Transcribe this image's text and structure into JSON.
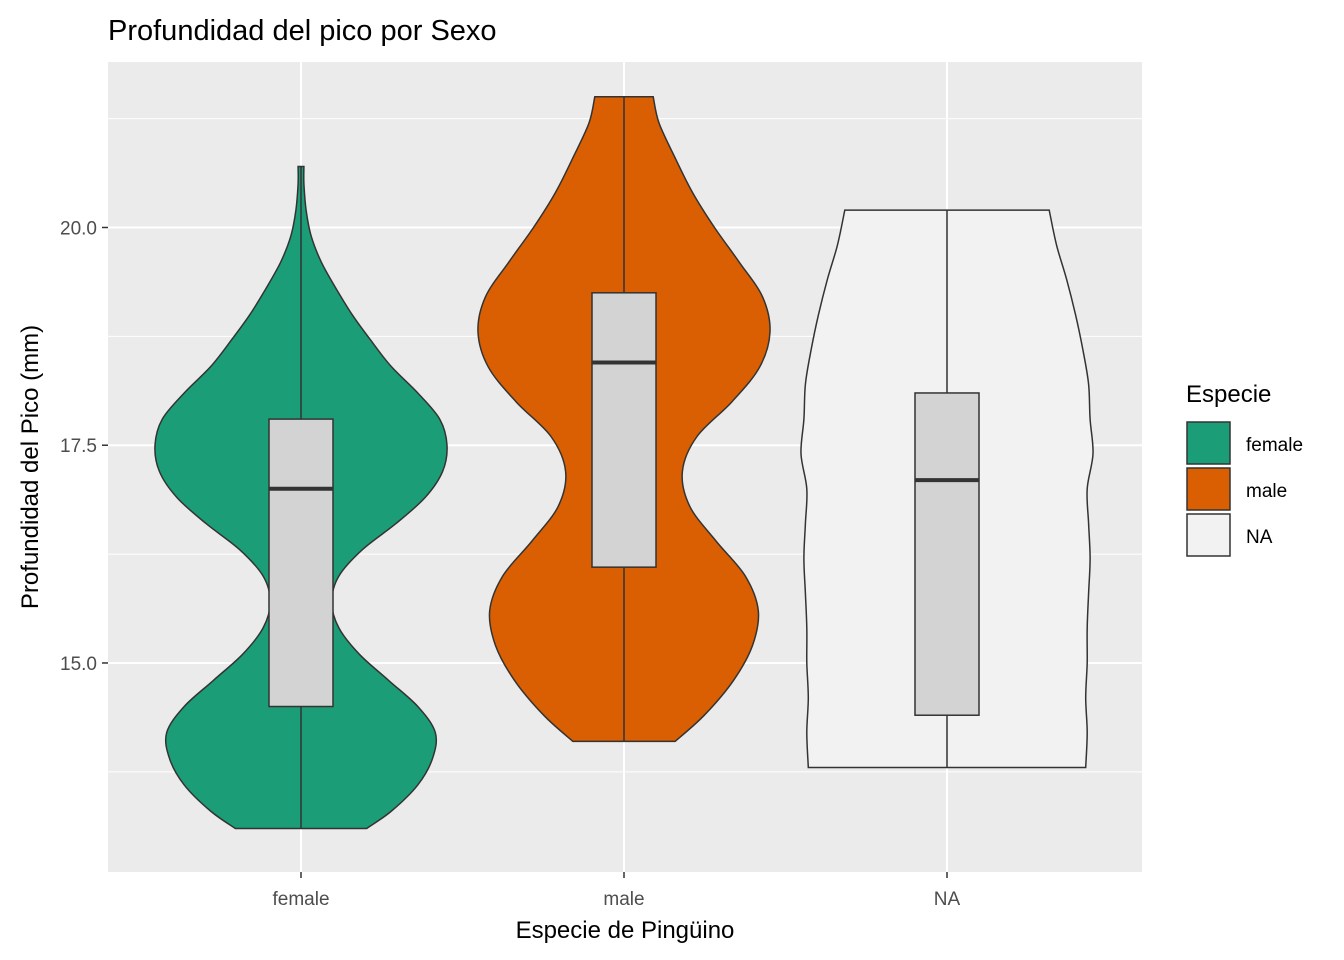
{
  "chart_data": {
    "type": "violin",
    "title": "Profundidad del pico por Sexo",
    "xlabel": "Especie de Pingüino",
    "ylabel": "Profundidad del Pico (mm)",
    "categories": [
      "female",
      "male",
      "NA"
    ],
    "ylim": [
      12.6,
      21.9
    ],
    "y_ticks": [
      15.0,
      17.5,
      20.0
    ],
    "y_tick_labels": [
      "15.0",
      "17.5",
      "20.0"
    ],
    "grid": true,
    "legend": {
      "title": "Especie",
      "position": "right",
      "entries": [
        "female",
        "male",
        "NA"
      ]
    },
    "colors": {
      "female": "#1b9e77",
      "male": "#d95f02",
      "NA": "#f2f2f2",
      "panel": "#ebebeb",
      "box_fill": "#d3d3d3",
      "outline": "#333333"
    },
    "series": [
      {
        "name": "female",
        "min": 13.1,
        "q1": 14.5,
        "median": 17.0,
        "q3": 17.8,
        "max": 20.7,
        "density": [
          [
            13.1,
            0.45
          ],
          [
            13.3,
            0.62
          ],
          [
            13.6,
            0.8
          ],
          [
            13.9,
            0.9
          ],
          [
            14.2,
            0.92
          ],
          [
            14.5,
            0.8
          ],
          [
            14.8,
            0.6
          ],
          [
            15.1,
            0.4
          ],
          [
            15.4,
            0.26
          ],
          [
            15.7,
            0.21
          ],
          [
            16.0,
            0.26
          ],
          [
            16.3,
            0.42
          ],
          [
            16.6,
            0.65
          ],
          [
            16.9,
            0.85
          ],
          [
            17.2,
            0.97
          ],
          [
            17.5,
            1.0
          ],
          [
            17.8,
            0.95
          ],
          [
            18.1,
            0.8
          ],
          [
            18.4,
            0.62
          ],
          [
            18.7,
            0.48
          ],
          [
            19.0,
            0.35
          ],
          [
            19.3,
            0.24
          ],
          [
            19.6,
            0.14
          ],
          [
            19.9,
            0.07
          ],
          [
            20.2,
            0.035
          ],
          [
            20.5,
            0.02
          ],
          [
            20.7,
            0.02
          ]
        ]
      },
      {
        "name": "male",
        "min": 14.1,
        "q1": 16.1,
        "median": 18.45,
        "q3": 19.25,
        "max": 21.5,
        "density": [
          [
            14.1,
            0.35
          ],
          [
            14.4,
            0.55
          ],
          [
            14.8,
            0.75
          ],
          [
            15.2,
            0.88
          ],
          [
            15.6,
            0.92
          ],
          [
            16.0,
            0.83
          ],
          [
            16.4,
            0.63
          ],
          [
            16.8,
            0.45
          ],
          [
            17.2,
            0.4
          ],
          [
            17.6,
            0.5
          ],
          [
            18.0,
            0.74
          ],
          [
            18.4,
            0.93
          ],
          [
            18.8,
            1.0
          ],
          [
            19.2,
            0.95
          ],
          [
            19.6,
            0.79
          ],
          [
            20.0,
            0.62
          ],
          [
            20.4,
            0.47
          ],
          [
            20.8,
            0.35
          ],
          [
            21.2,
            0.24
          ],
          [
            21.5,
            0.2
          ]
        ]
      },
      {
        "name": "NA",
        "min": 13.8,
        "q1": 14.4,
        "median": 17.1,
        "q3": 18.1,
        "max": 20.2,
        "density": [
          [
            13.8,
            0.95
          ],
          [
            14.2,
            0.96
          ],
          [
            14.6,
            0.95
          ],
          [
            15.0,
            0.96
          ],
          [
            15.4,
            0.96
          ],
          [
            15.8,
            0.97
          ],
          [
            16.2,
            0.98
          ],
          [
            16.6,
            0.97
          ],
          [
            17.0,
            0.96
          ],
          [
            17.4,
            1.0
          ],
          [
            17.8,
            0.98
          ],
          [
            18.2,
            0.97
          ],
          [
            18.6,
            0.93
          ],
          [
            19.0,
            0.88
          ],
          [
            19.4,
            0.82
          ],
          [
            19.8,
            0.75
          ],
          [
            20.2,
            0.7
          ]
        ]
      }
    ]
  }
}
